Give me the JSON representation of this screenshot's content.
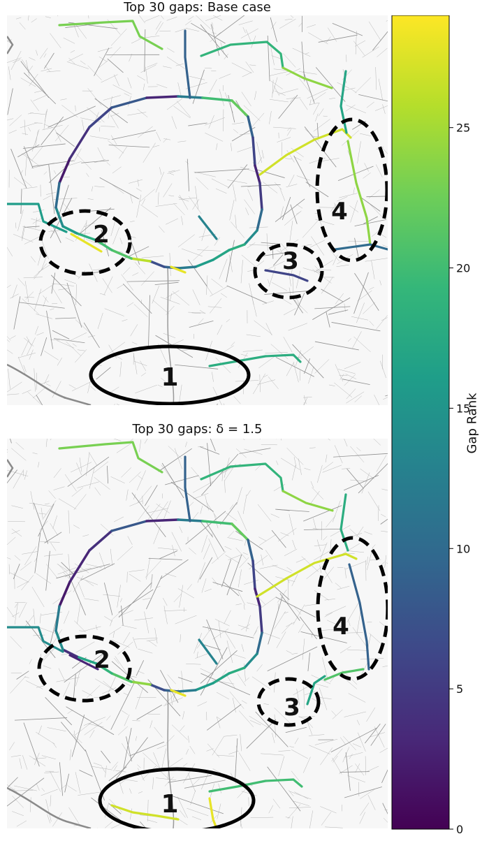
{
  "panels": [
    {
      "title": "Top 30 gaps: Base case",
      "zones": [
        {
          "label": "1",
          "style": "solid"
        },
        {
          "label": "2",
          "style": "dashed"
        },
        {
          "label": "3",
          "style": "dashed"
        },
        {
          "label": "4",
          "style": "dashed"
        }
      ]
    },
    {
      "title": "Top 30 gaps: δ = 1.5",
      "zones": [
        {
          "label": "1",
          "style": "solid"
        },
        {
          "label": "2",
          "style": "dashed"
        },
        {
          "label": "3",
          "style": "dashed"
        },
        {
          "label": "4",
          "style": "dashed"
        }
      ]
    }
  ],
  "colorbar": {
    "label": "Gap Rank",
    "ticks": [
      "0",
      "5",
      "10",
      "15",
      "20",
      "25"
    ],
    "min": 0,
    "max": 29,
    "colormap": "viridis"
  },
  "colors": {
    "viridis": [
      "#440154",
      "#482878",
      "#3e4989",
      "#31688e",
      "#26828e",
      "#1f9e89",
      "#35b779",
      "#6ece58",
      "#b5de2b",
      "#fde725"
    ],
    "zone_outline": "#000000",
    "base_network": "#9a9a9a"
  }
}
